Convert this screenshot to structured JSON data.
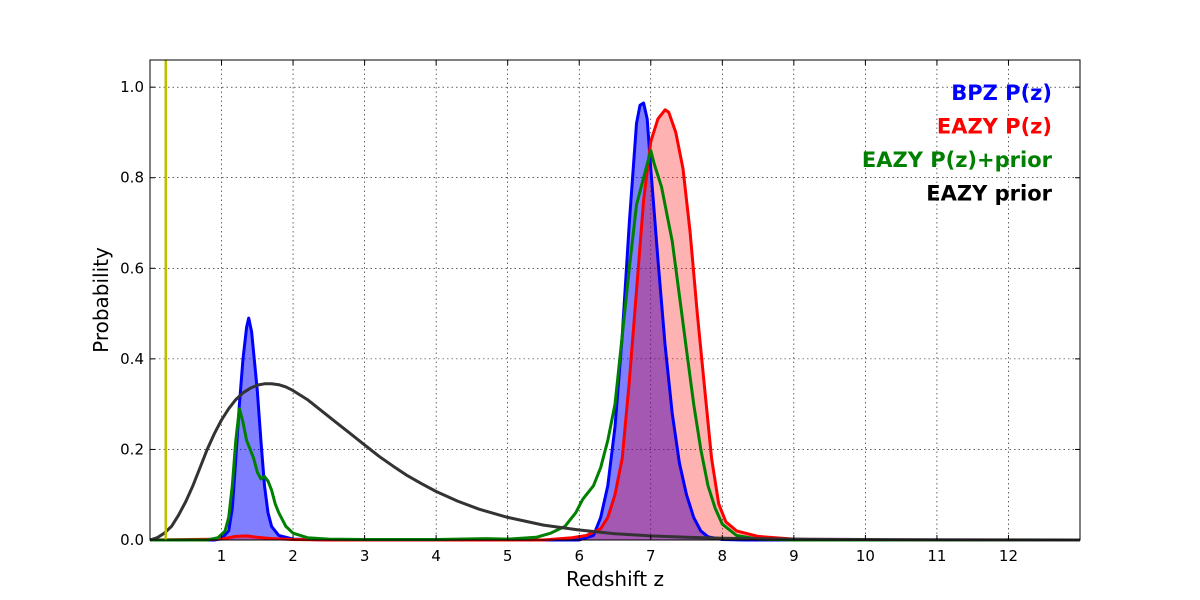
{
  "chart_data": {
    "type": "line",
    "title": "",
    "xlabel": "Redshift z",
    "ylabel": "Probability",
    "xlim": [
      0,
      13
    ],
    "ylim": [
      0,
      1.06
    ],
    "grid": true,
    "legend_placement": "top-right",
    "x_ticks": [
      1,
      2,
      3,
      4,
      5,
      6,
      7,
      8,
      9,
      10,
      11,
      12
    ],
    "y_ticks": [
      0.0,
      0.2,
      0.4,
      0.6,
      0.8,
      1.0
    ],
    "x_tick_labels": [
      "1",
      "2",
      "3",
      "4",
      "5",
      "6",
      "7",
      "8",
      "9",
      "10",
      "11",
      "12"
    ],
    "y_tick_labels": [
      "0.0",
      "0.2",
      "0.4",
      "0.6",
      "0.8",
      "1.0"
    ],
    "vline": {
      "x": 0.22,
      "color": "#bfbf00"
    },
    "series": [
      {
        "name": "BPZ P(z)",
        "color": "#0000ff",
        "fill": "#0000ff",
        "fill_opacity": 0.5,
        "points": [
          [
            0,
            0
          ],
          [
            0.9,
            0
          ],
          [
            1.0,
            0.003
          ],
          [
            1.1,
            0.02
          ],
          [
            1.15,
            0.07
          ],
          [
            1.2,
            0.18
          ],
          [
            1.25,
            0.3
          ],
          [
            1.3,
            0.4
          ],
          [
            1.35,
            0.47
          ],
          [
            1.38,
            0.49
          ],
          [
            1.42,
            0.46
          ],
          [
            1.5,
            0.33
          ],
          [
            1.55,
            0.22
          ],
          [
            1.6,
            0.12
          ],
          [
            1.65,
            0.06
          ],
          [
            1.7,
            0.03
          ],
          [
            1.8,
            0.01
          ],
          [
            2.0,
            0.002
          ],
          [
            2.5,
            0
          ],
          [
            6.0,
            0
          ],
          [
            6.2,
            0.01
          ],
          [
            6.3,
            0.05
          ],
          [
            6.4,
            0.12
          ],
          [
            6.5,
            0.25
          ],
          [
            6.6,
            0.45
          ],
          [
            6.7,
            0.7
          ],
          [
            6.8,
            0.92
          ],
          [
            6.85,
            0.96
          ],
          [
            6.9,
            0.965
          ],
          [
            6.95,
            0.93
          ],
          [
            7.0,
            0.82
          ],
          [
            7.1,
            0.62
          ],
          [
            7.2,
            0.43
          ],
          [
            7.3,
            0.28
          ],
          [
            7.4,
            0.17
          ],
          [
            7.5,
            0.1
          ],
          [
            7.6,
            0.05
          ],
          [
            7.7,
            0.02
          ],
          [
            7.8,
            0.007
          ],
          [
            8.0,
            0.001
          ],
          [
            8.3,
            0
          ],
          [
            13,
            0
          ]
        ]
      },
      {
        "name": "EAZY P(z)",
        "color": "#ff0000",
        "fill": "#ff0000",
        "fill_opacity": 0.3,
        "points": [
          [
            0,
            0
          ],
          [
            1.0,
            0.002
          ],
          [
            1.2,
            0.008
          ],
          [
            1.35,
            0.009
          ],
          [
            1.5,
            0.006
          ],
          [
            1.7,
            0.003
          ],
          [
            2.0,
            0.001
          ],
          [
            2.5,
            0
          ],
          [
            5.5,
            0
          ],
          [
            5.9,
            0.005
          ],
          [
            6.1,
            0.01
          ],
          [
            6.3,
            0.025
          ],
          [
            6.4,
            0.05
          ],
          [
            6.5,
            0.1
          ],
          [
            6.6,
            0.18
          ],
          [
            6.7,
            0.35
          ],
          [
            6.8,
            0.55
          ],
          [
            6.9,
            0.75
          ],
          [
            7.0,
            0.88
          ],
          [
            7.1,
            0.93
          ],
          [
            7.2,
            0.95
          ],
          [
            7.25,
            0.945
          ],
          [
            7.35,
            0.9
          ],
          [
            7.45,
            0.82
          ],
          [
            7.55,
            0.68
          ],
          [
            7.65,
            0.5
          ],
          [
            7.75,
            0.34
          ],
          [
            7.85,
            0.18
          ],
          [
            7.95,
            0.08
          ],
          [
            8.05,
            0.04
          ],
          [
            8.2,
            0.02
          ],
          [
            8.5,
            0.008
          ],
          [
            9.0,
            0.002
          ],
          [
            9.5,
            0
          ],
          [
            13,
            0
          ]
        ]
      },
      {
        "name": "EAZY P(z)+prior",
        "color": "#008000",
        "fill": "",
        "fill_opacity": 0,
        "points": [
          [
            0,
            0
          ],
          [
            0.8,
            0
          ],
          [
            0.95,
            0.005
          ],
          [
            1.05,
            0.02
          ],
          [
            1.1,
            0.05
          ],
          [
            1.15,
            0.12
          ],
          [
            1.2,
            0.22
          ],
          [
            1.25,
            0.29
          ],
          [
            1.3,
            0.26
          ],
          [
            1.35,
            0.22
          ],
          [
            1.4,
            0.2
          ],
          [
            1.45,
            0.18
          ],
          [
            1.5,
            0.15
          ],
          [
            1.55,
            0.135
          ],
          [
            1.6,
            0.14
          ],
          [
            1.65,
            0.13
          ],
          [
            1.7,
            0.11
          ],
          [
            1.75,
            0.08
          ],
          [
            1.8,
            0.06
          ],
          [
            1.9,
            0.03
          ],
          [
            2.0,
            0.015
          ],
          [
            2.2,
            0.005
          ],
          [
            2.5,
            0.002
          ],
          [
            3.0,
            0.001
          ],
          [
            4.0,
            0.001
          ],
          [
            4.7,
            0.003
          ],
          [
            5.0,
            0.002
          ],
          [
            5.4,
            0.006
          ],
          [
            5.6,
            0.015
          ],
          [
            5.8,
            0.03
          ],
          [
            5.95,
            0.06
          ],
          [
            6.05,
            0.09
          ],
          [
            6.2,
            0.12
          ],
          [
            6.3,
            0.16
          ],
          [
            6.4,
            0.22
          ],
          [
            6.5,
            0.3
          ],
          [
            6.6,
            0.45
          ],
          [
            6.7,
            0.6
          ],
          [
            6.8,
            0.74
          ],
          [
            6.9,
            0.8
          ],
          [
            7.0,
            0.86
          ],
          [
            7.05,
            0.83
          ],
          [
            7.15,
            0.78
          ],
          [
            7.3,
            0.66
          ],
          [
            7.4,
            0.54
          ],
          [
            7.5,
            0.42
          ],
          [
            7.6,
            0.3
          ],
          [
            7.7,
            0.2
          ],
          [
            7.8,
            0.12
          ],
          [
            7.9,
            0.07
          ],
          [
            8.0,
            0.035
          ],
          [
            8.2,
            0.01
          ],
          [
            8.5,
            0.002
          ],
          [
            9.0,
            0
          ],
          [
            13,
            0
          ]
        ]
      },
      {
        "name": "EAZY prior",
        "color": "#333333",
        "fill": "",
        "fill_opacity": 0,
        "points": [
          [
            0,
            0
          ],
          [
            0.1,
            0.005
          ],
          [
            0.2,
            0.015
          ],
          [
            0.3,
            0.03
          ],
          [
            0.4,
            0.055
          ],
          [
            0.5,
            0.085
          ],
          [
            0.6,
            0.12
          ],
          [
            0.7,
            0.16
          ],
          [
            0.8,
            0.2
          ],
          [
            0.9,
            0.235
          ],
          [
            1.0,
            0.265
          ],
          [
            1.1,
            0.29
          ],
          [
            1.2,
            0.31
          ],
          [
            1.3,
            0.325
          ],
          [
            1.4,
            0.335
          ],
          [
            1.5,
            0.342
          ],
          [
            1.6,
            0.345
          ],
          [
            1.7,
            0.345
          ],
          [
            1.8,
            0.343
          ],
          [
            1.9,
            0.338
          ],
          [
            2.0,
            0.33
          ],
          [
            2.2,
            0.31
          ],
          [
            2.4,
            0.285
          ],
          [
            2.6,
            0.26
          ],
          [
            2.8,
            0.235
          ],
          [
            3.0,
            0.21
          ],
          [
            3.2,
            0.185
          ],
          [
            3.4,
            0.163
          ],
          [
            3.6,
            0.142
          ],
          [
            3.8,
            0.124
          ],
          [
            4.0,
            0.107
          ],
          [
            4.3,
            0.086
          ],
          [
            4.6,
            0.068
          ],
          [
            5.0,
            0.05
          ],
          [
            5.5,
            0.033
          ],
          [
            6.0,
            0.022
          ],
          [
            6.5,
            0.014
          ],
          [
            7.0,
            0.009
          ],
          [
            7.5,
            0.006
          ],
          [
            8.0,
            0.004
          ],
          [
            9.0,
            0.002
          ],
          [
            10.0,
            0.001
          ],
          [
            11.0,
            0.0005
          ],
          [
            12.0,
            0.0002
          ],
          [
            13,
            0
          ]
        ]
      }
    ]
  }
}
